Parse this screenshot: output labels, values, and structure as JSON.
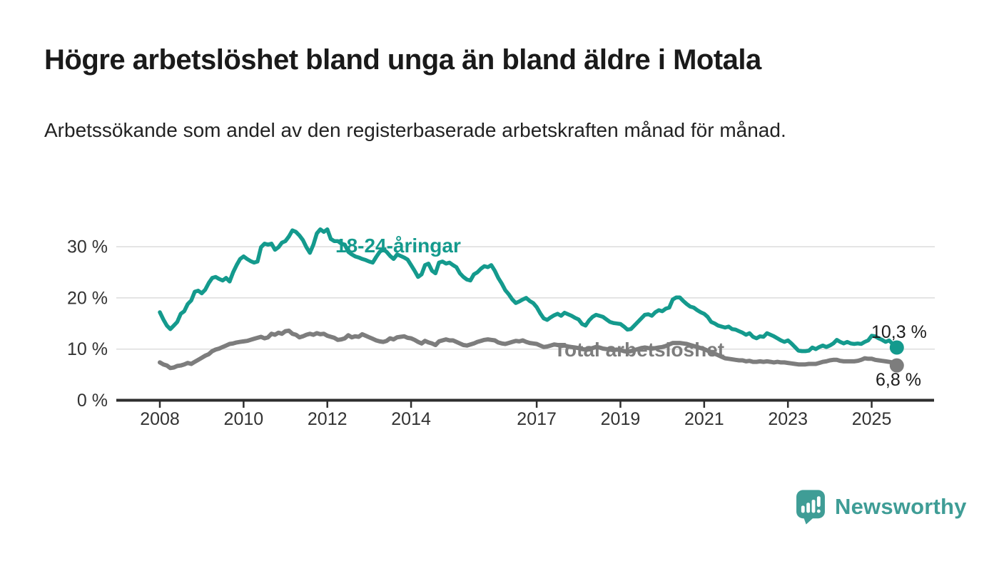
{
  "header": {
    "title": "Högre arbetslöshet bland unga än bland äldre i Motala",
    "subtitle": "Arbetssökande som andel av den registerbaserade arbetskraften månad för månad."
  },
  "footer": {
    "brand": "Newsworthy",
    "brand_color": "#3f9d96"
  },
  "chart_data": {
    "type": "line",
    "title": "Högre arbetslöshet bland unga än bland äldre i Motala",
    "subtitle": "Arbetssökande som andel av den registerbaserade arbetskraften månad för månad.",
    "frequency": "monthly",
    "x_start": "2008-01",
    "x_end": "2025-08",
    "ylim": [
      0,
      35
    ],
    "grid": "horizontal",
    "x_axis": {
      "tick_years": [
        2008,
        2010,
        2012,
        2014,
        2017,
        2019,
        2021,
        2023,
        2025
      ]
    },
    "y_axis": {
      "ticks": [
        {
          "value": 30,
          "label": "30 %"
        },
        {
          "value": 20,
          "label": "20 %"
        },
        {
          "value": 10,
          "label": "10 %"
        },
        {
          "value": 0,
          "label": "0 %"
        }
      ],
      "gridline_values": [
        30,
        20,
        10
      ]
    },
    "series": [
      {
        "name": "18-24-åringar",
        "color": "#149a8d",
        "end_label": "10,3 %",
        "end_value": 10.3,
        "values": [
          17.2,
          15.8,
          14.6,
          13.9,
          14.6,
          15.3,
          16.9,
          17.4,
          18.8,
          19.5,
          21.2,
          21.4,
          20.9,
          21.6,
          22.9,
          23.9,
          24.1,
          23.7,
          23.4,
          23.9,
          23.2,
          25.0,
          26.4,
          27.6,
          28.1,
          27.6,
          27.2,
          26.9,
          27.1,
          29.9,
          30.6,
          30.4,
          30.6,
          29.4,
          29.9,
          30.8,
          31.1,
          32.0,
          33.2,
          32.9,
          32.2,
          31.3,
          29.9,
          28.8,
          30.4,
          32.6,
          33.4,
          32.9,
          33.4,
          31.5,
          31.1,
          31.1,
          30.6,
          30.4,
          29.0,
          28.5,
          28.1,
          27.9,
          27.6,
          27.4,
          27.1,
          26.9,
          28.0,
          29.0,
          29.5,
          29.0,
          28.2,
          27.6,
          28.5,
          28.2,
          27.9,
          27.5,
          26.4,
          25.3,
          24.1,
          24.6,
          26.4,
          26.7,
          25.3,
          24.8,
          26.9,
          27.1,
          26.7,
          26.9,
          26.4,
          26.0,
          24.8,
          24.1,
          23.6,
          23.4,
          24.6,
          25.0,
          25.7,
          26.2,
          26.0,
          26.4,
          25.3,
          23.9,
          22.8,
          21.5,
          20.7,
          19.7,
          19.0,
          19.3,
          19.7,
          20.0,
          19.4,
          19.0,
          18.2,
          17.0,
          16.0,
          15.7,
          16.2,
          16.6,
          16.9,
          16.5,
          17.1,
          16.8,
          16.5,
          16.1,
          15.8,
          14.9,
          14.6,
          15.6,
          16.3,
          16.7,
          16.5,
          16.3,
          15.8,
          15.3,
          15.1,
          15.0,
          14.9,
          14.4,
          13.8,
          13.9,
          14.6,
          15.3,
          16.0,
          16.7,
          16.8,
          16.5,
          17.2,
          17.6,
          17.4,
          17.9,
          18.1,
          19.7,
          20.1,
          20.1,
          19.4,
          18.8,
          18.3,
          18.1,
          17.6,
          17.2,
          16.9,
          16.3,
          15.3,
          15.0,
          14.6,
          14.4,
          14.2,
          14.4,
          13.9,
          13.8,
          13.5,
          13.2,
          12.8,
          13.1,
          12.4,
          12.1,
          12.5,
          12.4,
          13.1,
          12.8,
          12.5,
          12.1,
          11.7,
          11.4,
          11.7,
          11.1,
          10.4,
          9.7,
          9.6,
          9.6,
          9.7,
          10.3,
          10.0,
          10.4,
          10.7,
          10.4,
          10.7,
          11.1,
          11.8,
          11.4,
          11.1,
          11.4,
          11.1,
          11.0,
          11.1,
          11.0,
          11.4,
          11.7,
          12.6,
          12.5,
          12.1,
          11.8,
          11.4,
          11.7,
          11.0,
          10.3
        ]
      },
      {
        "name": "Total arbetslöshet",
        "color": "#7d7d7d",
        "end_label": "6,8 %",
        "end_value": 6.8,
        "values": [
          7.4,
          7.0,
          6.8,
          6.3,
          6.4,
          6.7,
          6.8,
          7.0,
          7.3,
          7.1,
          7.5,
          7.9,
          8.3,
          8.7,
          9.0,
          9.6,
          9.9,
          10.1,
          10.4,
          10.7,
          11.0,
          11.1,
          11.3,
          11.4,
          11.5,
          11.6,
          11.8,
          12.0,
          12.2,
          12.4,
          12.1,
          12.3,
          13.0,
          12.8,
          13.2,
          13.0,
          13.5,
          13.6,
          13.0,
          12.8,
          12.3,
          12.5,
          12.8,
          13.0,
          12.8,
          13.1,
          12.9,
          13.0,
          12.6,
          12.4,
          12.2,
          11.8,
          11.9,
          12.1,
          12.7,
          12.3,
          12.5,
          12.4,
          12.9,
          12.6,
          12.3,
          12.0,
          11.7,
          11.5,
          11.4,
          11.6,
          12.1,
          11.9,
          12.3,
          12.4,
          12.5,
          12.2,
          12.1,
          11.8,
          11.4,
          11.1,
          11.6,
          11.3,
          11.1,
          10.8,
          11.5,
          11.7,
          11.9,
          11.7,
          11.7,
          11.4,
          11.1,
          10.8,
          10.7,
          10.9,
          11.1,
          11.4,
          11.6,
          11.8,
          11.9,
          11.8,
          11.7,
          11.3,
          11.1,
          11.0,
          11.2,
          11.4,
          11.6,
          11.5,
          11.7,
          11.4,
          11.2,
          11.1,
          11.0,
          10.7,
          10.4,
          10.5,
          10.7,
          10.9,
          10.8,
          10.6,
          10.7,
          10.5,
          10.4,
          10.3,
          10.2,
          10.0,
          9.9,
          10.0,
          10.2,
          10.4,
          10.3,
          10.1,
          10.0,
          9.9,
          9.8,
          9.9,
          9.8,
          9.6,
          9.5,
          9.6,
          9.8,
          10.0,
          10.2,
          10.3,
          10.2,
          10.1,
          10.2,
          10.3,
          10.4,
          10.6,
          10.9,
          11.2,
          11.2,
          11.2,
          11.1,
          11.0,
          10.8,
          10.6,
          10.4,
          10.2,
          10.0,
          9.7,
          9.4,
          9.1,
          8.8,
          8.5,
          8.2,
          8.1,
          8.0,
          7.9,
          7.8,
          7.8,
          7.6,
          7.7,
          7.5,
          7.5,
          7.6,
          7.5,
          7.6,
          7.5,
          7.4,
          7.5,
          7.4,
          7.4,
          7.3,
          7.2,
          7.1,
          7.0,
          7.0,
          7.0,
          7.1,
          7.1,
          7.1,
          7.3,
          7.5,
          7.6,
          7.8,
          7.9,
          7.9,
          7.7,
          7.6,
          7.6,
          7.6,
          7.6,
          7.7,
          7.9,
          8.2,
          8.1,
          8.1,
          7.9,
          7.8,
          7.7,
          7.6,
          7.5,
          7.4,
          6.8
        ]
      }
    ]
  }
}
